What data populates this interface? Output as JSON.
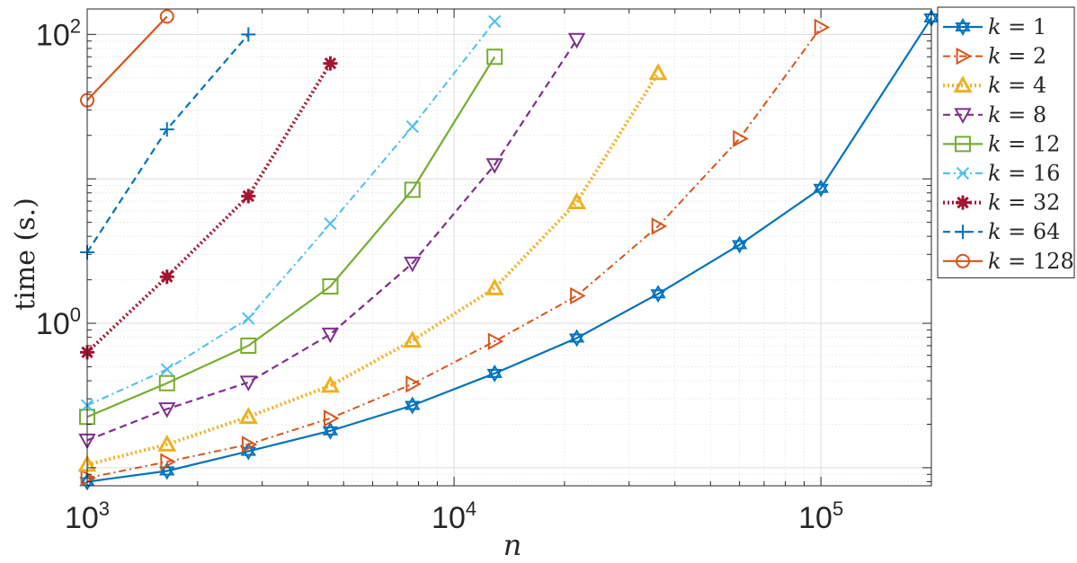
{
  "chart_data": {
    "type": "line",
    "title": "",
    "xlabel": "n",
    "ylabel": "time (s.)",
    "x_scale": "log",
    "y_scale": "log",
    "xlim": [
      1000,
      200000
    ],
    "ylim": [
      0.075,
      150
    ],
    "grid": true,
    "minor_grid": true,
    "legend_position": "right, outside",
    "x_ticks": [
      {
        "base": "10",
        "exp": "3",
        "value": 1000
      },
      {
        "base": "10",
        "exp": "4",
        "value": 10000
      },
      {
        "base": "10",
        "exp": "5",
        "value": 100000
      }
    ],
    "y_ticks": [
      {
        "base": "10",
        "exp": "0",
        "value": 1
      },
      {
        "base": "10",
        "exp": "2",
        "value": 100
      }
    ],
    "series": [
      {
        "name": "k = 1",
        "k": "1",
        "color": "#0072BD",
        "dash": "solid",
        "marker": "hexagram",
        "x": [
          1000,
          1650,
          2750,
          4600,
          7700,
          12900,
          21600,
          36000,
          60000,
          100000,
          200000
        ],
        "y": [
          0.08,
          0.095,
          0.13,
          0.18,
          0.27,
          0.45,
          0.79,
          1.6,
          3.5,
          8.6,
          130
        ]
      },
      {
        "name": "k = 2",
        "k": "2",
        "color": "#D95319",
        "dash": "dashdot",
        "marker": "triangle-right",
        "x": [
          1000,
          1650,
          2750,
          4600,
          7700,
          12900,
          21600,
          36000,
          60000,
          100000
        ],
        "y": [
          0.085,
          0.11,
          0.145,
          0.22,
          0.38,
          0.75,
          1.55,
          4.7,
          19,
          112
        ]
      },
      {
        "name": "k = 4",
        "k": "4",
        "color": "#EDB120",
        "dash": "dotted",
        "marker": "triangle-up",
        "x": [
          1000,
          1650,
          2750,
          4600,
          7700,
          12900,
          21600,
          36000
        ],
        "y": [
          0.105,
          0.145,
          0.225,
          0.37,
          0.76,
          1.75,
          6.9,
          54
        ]
      },
      {
        "name": "k = 8",
        "k": "8",
        "color": "#7E2F8E",
        "dash": "dashed",
        "marker": "triangle-down",
        "x": [
          1000,
          1650,
          2750,
          4600,
          7700,
          12900,
          21600
        ],
        "y": [
          0.155,
          0.255,
          0.39,
          0.84,
          2.6,
          12.5,
          92
        ]
      },
      {
        "name": "k = 12",
        "k": "12",
        "color": "#77AC30",
        "dash": "solid",
        "marker": "square",
        "x": [
          1000,
          1650,
          2750,
          4600,
          7700,
          12900
        ],
        "y": [
          0.225,
          0.385,
          0.7,
          1.8,
          8.4,
          70
        ]
      },
      {
        "name": "k = 16",
        "k": "16",
        "color": "#4DBEEE",
        "dash": "dashdot",
        "marker": "x",
        "x": [
          1000,
          1650,
          2750,
          4600,
          7700,
          12900
        ],
        "y": [
          0.27,
          0.48,
          1.08,
          4.9,
          23,
          123
        ]
      },
      {
        "name": "k = 32",
        "k": "32",
        "color": "#A2142F",
        "dash": "dotted",
        "marker": "asterisk",
        "x": [
          1000,
          1650,
          2750,
          4600
        ],
        "y": [
          0.63,
          2.1,
          7.6,
          63
        ]
      },
      {
        "name": "k = 64",
        "k": "64",
        "color": "#0072BD",
        "dash": "dashed",
        "marker": "plus",
        "x": [
          1000,
          1650,
          2750
        ],
        "y": [
          3.1,
          22,
          100
        ]
      },
      {
        "name": "k = 128",
        "k": "128",
        "color": "#D95319",
        "dash": "solid",
        "marker": "circle",
        "x": [
          1000,
          1650
        ],
        "y": [
          35,
          133
        ]
      }
    ]
  }
}
